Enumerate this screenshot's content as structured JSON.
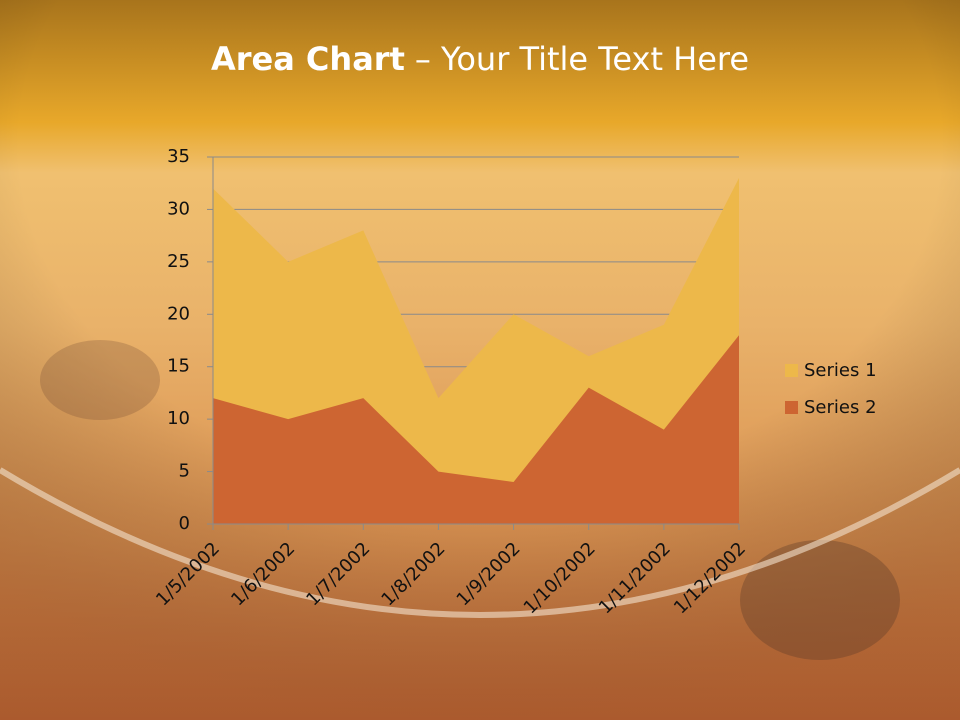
{
  "header": {
    "title_bold": "Area Chart",
    "title_rest": "– Your Title Text Here"
  },
  "chart_data": {
    "type": "area",
    "categories": [
      "1/5/2002",
      "1/6/2002",
      "1/7/2002",
      "1/8/2002",
      "1/9/2002",
      "1/10/2002",
      "1/11/2002",
      "1/12/2002"
    ],
    "series": [
      {
        "name": "Series 1",
        "color": "#edb84a",
        "values": [
          32,
          25,
          28,
          12,
          20,
          16,
          19,
          33
        ]
      },
      {
        "name": "Series 2",
        "color": "#cd6532",
        "values": [
          12,
          10,
          12,
          5,
          4,
          13,
          9,
          18
        ]
      }
    ],
    "ylim": [
      0,
      35
    ],
    "yticks": [
      0,
      5,
      10,
      15,
      20,
      25,
      30,
      35
    ],
    "grid": true,
    "legend": "right"
  }
}
